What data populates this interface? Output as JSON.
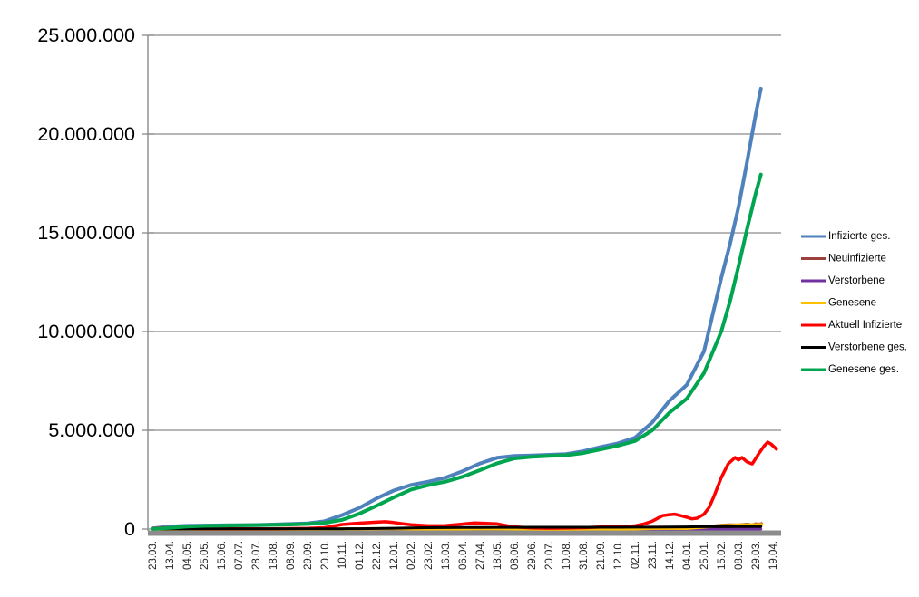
{
  "chart_data": {
    "type": "line",
    "title": "",
    "x_axis": {
      "tick_labels": [
        "23.03.",
        "13.04.",
        "04.05.",
        "25.05.",
        "15.06.",
        "07.07.",
        "28.07.",
        "18.08.",
        "08.09.",
        "29.09.",
        "20.10.",
        "10.11.",
        "01.12.",
        "22.12.",
        "12.01.",
        "02.02.",
        "23.02.",
        "16.03.",
        "06.04.",
        "27.04.",
        "18.05.",
        "08.06.",
        "29.06.",
        "20.07.",
        "10.08.",
        "31.08.",
        "21.09.",
        "12.10.",
        "02.11.",
        "23.11.",
        "14.12.",
        "04.01.",
        "25.01.",
        "15.02.",
        "08.03.",
        "29.03.",
        "19.04."
      ],
      "tick_interval_days": 21,
      "label_rotation_deg": -90
    },
    "y_axis": {
      "tick_labels": [
        "0",
        "5.000.000",
        "10.000.000",
        "15.000.000",
        "20.000.000",
        "25.000.000"
      ],
      "tick_values_millions": [
        0,
        5,
        10,
        15,
        20,
        25
      ],
      "ylim_millions": [
        0,
        25
      ]
    },
    "grid": "horizontal major gridlines every 5.000.000",
    "legend_position": "right",
    "unit": "millions of persons; x in tick-index units (1 tick = 21 days)",
    "series": [
      {
        "name": "Infizierte ges.",
        "color": "#4F81BD",
        "width": 4,
        "points": [
          [
            0,
            0.03
          ],
          [
            1,
            0.13
          ],
          [
            2,
            0.163
          ],
          [
            3,
            0.18
          ],
          [
            4,
            0.19
          ],
          [
            5,
            0.198
          ],
          [
            6,
            0.207
          ],
          [
            7,
            0.228
          ],
          [
            8,
            0.255
          ],
          [
            9,
            0.289
          ],
          [
            10,
            0.397
          ],
          [
            11,
            0.705
          ],
          [
            12,
            1.067
          ],
          [
            13,
            1.55
          ],
          [
            14,
            1.95
          ],
          [
            15,
            2.23
          ],
          [
            16,
            2.4
          ],
          [
            17,
            2.6
          ],
          [
            18,
            2.93
          ],
          [
            19,
            3.32
          ],
          [
            20,
            3.61
          ],
          [
            21,
            3.7
          ],
          [
            22,
            3.73
          ],
          [
            23,
            3.76
          ],
          [
            24,
            3.8
          ],
          [
            25,
            3.94
          ],
          [
            26,
            4.15
          ],
          [
            27,
            4.34
          ],
          [
            28,
            4.63
          ],
          [
            29,
            5.4
          ],
          [
            30,
            6.5
          ],
          [
            31,
            7.3
          ],
          [
            32,
            9.0
          ],
          [
            33,
            12.7
          ],
          [
            33.5,
            14.4
          ],
          [
            34,
            16.3
          ],
          [
            34.5,
            18.6
          ],
          [
            35,
            21.0
          ],
          [
            35.3,
            22.3
          ]
        ]
      },
      {
        "name": "Neuinfizierte",
        "color": "#9E413E",
        "width": 3,
        "points": [
          [
            0,
            0.004
          ],
          [
            1,
            0.0045
          ],
          [
            2,
            0.0012
          ],
          [
            3,
            0.0006
          ],
          [
            4,
            0.0004
          ],
          [
            5,
            0.0004
          ],
          [
            6,
            0.0009
          ],
          [
            7,
            0.0014
          ],
          [
            8,
            0.0015
          ],
          [
            9,
            0.0024
          ],
          [
            10,
            0.0075
          ],
          [
            11,
            0.018
          ],
          [
            12,
            0.018
          ],
          [
            13,
            0.025
          ],
          [
            14,
            0.018
          ],
          [
            15,
            0.009
          ],
          [
            16,
            0.008
          ],
          [
            17,
            0.013
          ],
          [
            18,
            0.02
          ],
          [
            19,
            0.023
          ],
          [
            20,
            0.012
          ],
          [
            21,
            0.004
          ],
          [
            22,
            0.001
          ],
          [
            23,
            0.0015
          ],
          [
            24,
            0.004
          ],
          [
            25,
            0.008
          ],
          [
            26,
            0.008
          ],
          [
            27,
            0.008
          ],
          [
            28,
            0.017
          ],
          [
            29,
            0.05
          ],
          [
            30,
            0.05
          ],
          [
            31,
            0.04
          ],
          [
            32,
            0.09
          ],
          [
            32.5,
            0.15
          ],
          [
            33,
            0.2
          ],
          [
            33.5,
            0.22
          ],
          [
            34,
            0.21
          ],
          [
            34.5,
            0.25
          ],
          [
            34.8,
            0.22
          ],
          [
            35,
            0.27
          ],
          [
            35.2,
            0.25
          ],
          [
            35.35,
            0.28
          ]
        ]
      },
      {
        "name": "Verstorbene",
        "color": "#7030A0",
        "width": 3,
        "points": [
          [
            0,
            0.0002
          ],
          [
            5,
            0.0002
          ],
          [
            10,
            0.0004
          ],
          [
            12,
            0.0012
          ],
          [
            13,
            0.0018
          ],
          [
            14,
            0.002
          ],
          [
            15,
            0.0016
          ],
          [
            16,
            0.001
          ],
          [
            17,
            0.0006
          ],
          [
            18,
            0.0005
          ],
          [
            19,
            0.0006
          ],
          [
            20,
            0.0005
          ],
          [
            21,
            0.0003
          ],
          [
            22,
            0.0002
          ],
          [
            24,
            0.0002
          ],
          [
            26,
            0.0002
          ],
          [
            27,
            0.0003
          ],
          [
            28,
            0.0004
          ],
          [
            29,
            0.0006
          ],
          [
            30,
            0.001
          ],
          [
            31,
            0.001
          ],
          [
            32,
            0.0008
          ],
          [
            33,
            0.0006
          ],
          [
            34,
            0.0007
          ],
          [
            35,
            0.0008
          ],
          [
            35.3,
            0.0008
          ]
        ]
      },
      {
        "name": "Genesene",
        "color": "#FFC000",
        "width": 3.5,
        "points": [
          [
            0,
            0.001
          ],
          [
            1,
            0.004
          ],
          [
            2,
            0.005
          ],
          [
            3,
            0.002
          ],
          [
            4,
            0.0006
          ],
          [
            5,
            0.0004
          ],
          [
            6,
            0.0006
          ],
          [
            7,
            0.001
          ],
          [
            8,
            0.0012
          ],
          [
            9,
            0.0018
          ],
          [
            10,
            0.004
          ],
          [
            11,
            0.011
          ],
          [
            12,
            0.016
          ],
          [
            13,
            0.02
          ],
          [
            14,
            0.021
          ],
          [
            15,
            0.016
          ],
          [
            16,
            0.009
          ],
          [
            17,
            0.009
          ],
          [
            18,
            0.014
          ],
          [
            19,
            0.018
          ],
          [
            20,
            0.017
          ],
          [
            21,
            0.009
          ],
          [
            22,
            0.003
          ],
          [
            23,
            0.0015
          ],
          [
            24,
            0.002
          ],
          [
            25,
            0.005
          ],
          [
            26,
            0.007
          ],
          [
            27,
            0.006
          ],
          [
            28,
            0.01
          ],
          [
            29,
            0.03
          ],
          [
            30,
            0.04
          ],
          [
            31,
            0.035
          ],
          [
            32,
            0.1
          ],
          [
            33,
            0.17
          ],
          [
            33.5,
            0.18
          ],
          [
            34,
            0.2
          ],
          [
            34.5,
            0.21
          ],
          [
            35,
            0.22
          ],
          [
            35.35,
            0.23
          ]
        ]
      },
      {
        "name": "Aktuell Infizierte",
        "color": "#FF0000",
        "width": 3.5,
        "points": [
          [
            0,
            0.025
          ],
          [
            0.5,
            0.055
          ],
          [
            0.9,
            0.066
          ],
          [
            1.5,
            0.052
          ],
          [
            2,
            0.036
          ],
          [
            2.5,
            0.022
          ],
          [
            3,
            0.013
          ],
          [
            4,
            0.008
          ],
          [
            5,
            0.007
          ],
          [
            6,
            0.01
          ],
          [
            7,
            0.016
          ],
          [
            8,
            0.021
          ],
          [
            9,
            0.032
          ],
          [
            10,
            0.07
          ],
          [
            11,
            0.23
          ],
          [
            12,
            0.3
          ],
          [
            13,
            0.35
          ],
          [
            13.5,
            0.37
          ],
          [
            14,
            0.33
          ],
          [
            14.5,
            0.27
          ],
          [
            15,
            0.22
          ],
          [
            16,
            0.165
          ],
          [
            17,
            0.17
          ],
          [
            18,
            0.25
          ],
          [
            18.7,
            0.31
          ],
          [
            19,
            0.3
          ],
          [
            20,
            0.26
          ],
          [
            20.5,
            0.18
          ],
          [
            21,
            0.11
          ],
          [
            22,
            0.06
          ],
          [
            23,
            0.04
          ],
          [
            24,
            0.05
          ],
          [
            25,
            0.07
          ],
          [
            26,
            0.1
          ],
          [
            27,
            0.1
          ],
          [
            28,
            0.16
          ],
          [
            28.5,
            0.25
          ],
          [
            29,
            0.4
          ],
          [
            29.6,
            0.68
          ],
          [
            30,
            0.73
          ],
          [
            30.3,
            0.75
          ],
          [
            30.7,
            0.67
          ],
          [
            31,
            0.6
          ],
          [
            31.3,
            0.52
          ],
          [
            31.6,
            0.55
          ],
          [
            32,
            0.75
          ],
          [
            32.3,
            1.1
          ],
          [
            32.6,
            1.7
          ],
          [
            33,
            2.6
          ],
          [
            33.4,
            3.3
          ],
          [
            33.8,
            3.62
          ],
          [
            34,
            3.5
          ],
          [
            34.2,
            3.62
          ],
          [
            34.5,
            3.4
          ],
          [
            34.8,
            3.3
          ],
          [
            35.2,
            3.85
          ],
          [
            35.5,
            4.22
          ],
          [
            35.7,
            4.4
          ],
          [
            35.9,
            4.3
          ],
          [
            36.2,
            4.05
          ]
        ]
      },
      {
        "name": "Verstorbene ges.",
        "color": "#000000",
        "width": 3,
        "points": [
          [
            0,
            0.001
          ],
          [
            1,
            0.003
          ],
          [
            2,
            0.006
          ],
          [
            3,
            0.008
          ],
          [
            4,
            0.0088
          ],
          [
            5,
            0.009
          ],
          [
            6,
            0.0091
          ],
          [
            7,
            0.0092
          ],
          [
            8,
            0.0093
          ],
          [
            9,
            0.0096
          ],
          [
            10,
            0.01
          ],
          [
            11,
            0.012
          ],
          [
            12,
            0.017
          ],
          [
            13,
            0.027
          ],
          [
            14,
            0.042
          ],
          [
            15,
            0.058
          ],
          [
            16,
            0.068
          ],
          [
            17,
            0.074
          ],
          [
            18,
            0.077
          ],
          [
            19,
            0.082
          ],
          [
            20,
            0.086
          ],
          [
            21,
            0.089
          ],
          [
            22,
            0.0905
          ],
          [
            23,
            0.0913
          ],
          [
            24,
            0.0918
          ],
          [
            25,
            0.0921
          ],
          [
            26,
            0.0928
          ],
          [
            27,
            0.094
          ],
          [
            28,
            0.0955
          ],
          [
            29,
            0.0985
          ],
          [
            30,
            0.104
          ],
          [
            31,
            0.112
          ],
          [
            32,
            0.117
          ],
          [
            33,
            0.12
          ],
          [
            34,
            0.124
          ],
          [
            35,
            0.127
          ],
          [
            35.3,
            0.128
          ]
        ]
      },
      {
        "name": "Genesene ges.",
        "color": "#00A550",
        "width": 4,
        "points": [
          [
            0,
            0.003
          ],
          [
            1,
            0.057
          ],
          [
            2,
            0.13
          ],
          [
            3,
            0.161
          ],
          [
            4,
            0.175
          ],
          [
            5,
            0.187
          ],
          [
            6,
            0.196
          ],
          [
            7,
            0.21
          ],
          [
            8,
            0.229
          ],
          [
            9,
            0.259
          ],
          [
            10,
            0.317
          ],
          [
            11,
            0.463
          ],
          [
            12,
            0.78
          ],
          [
            13,
            1.18
          ],
          [
            14,
            1.6
          ],
          [
            15,
            2.0
          ],
          [
            16,
            2.22
          ],
          [
            17,
            2.4
          ],
          [
            18,
            2.65
          ],
          [
            19,
            2.98
          ],
          [
            20,
            3.33
          ],
          [
            21,
            3.58
          ],
          [
            22,
            3.66
          ],
          [
            23,
            3.7
          ],
          [
            24,
            3.74
          ],
          [
            25,
            3.85
          ],
          [
            26,
            4.03
          ],
          [
            27,
            4.22
          ],
          [
            28,
            4.46
          ],
          [
            29,
            5.0
          ],
          [
            30,
            5.9
          ],
          [
            31,
            6.6
          ],
          [
            32,
            7.9
          ],
          [
            33,
            10.0
          ],
          [
            33.5,
            11.5
          ],
          [
            34,
            13.3
          ],
          [
            34.5,
            15.2
          ],
          [
            35,
            17.0
          ],
          [
            35.3,
            17.95
          ]
        ]
      }
    ]
  },
  "legend": {
    "items": [
      "Infizierte ges.",
      "Neuinfizierte",
      "Verstorbene",
      "Genesene",
      "Aktuell Infizierte",
      "Verstorbene ges.",
      "Genesene ges."
    ]
  },
  "style_colors": {
    "gridline": "#8A8A8A",
    "axis_line": "#8A8A8A",
    "axis_bar": "#8C8C8C",
    "y_label_color": "#000000",
    "x_label_color": "#262626",
    "legend_text_color": "#000000",
    "background": "#FFFFFF"
  }
}
